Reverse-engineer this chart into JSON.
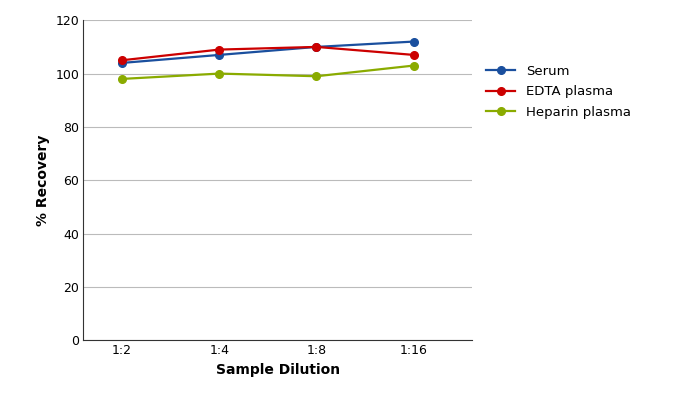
{
  "x_positions": [
    1,
    2,
    3,
    4
  ],
  "x_labels": [
    "1:2",
    "1:4",
    "1:8",
    "1:16"
  ],
  "serum": [
    104,
    107,
    110,
    112
  ],
  "edta_plasma": [
    105,
    109,
    110,
    107
  ],
  "heparin_plasma": [
    98,
    100,
    99,
    103
  ],
  "serum_color": "#1a4f9e",
  "edta_color": "#cc0000",
  "heparin_color": "#8aab00",
  "xlabel": "Sample Dilution",
  "ylabel": "% Recovery",
  "ylim": [
    0,
    120
  ],
  "yticks": [
    0,
    20,
    40,
    60,
    80,
    100,
    120
  ],
  "legend_labels": [
    "Serum",
    "EDTA plasma",
    "Heparin plasma"
  ],
  "marker": "o",
  "linewidth": 1.6,
  "markersize": 5.5,
  "grid_color": "#bbbbbb",
  "background_color": "#ffffff",
  "tick_fontsize": 9,
  "label_fontsize": 10,
  "legend_fontsize": 9.5
}
